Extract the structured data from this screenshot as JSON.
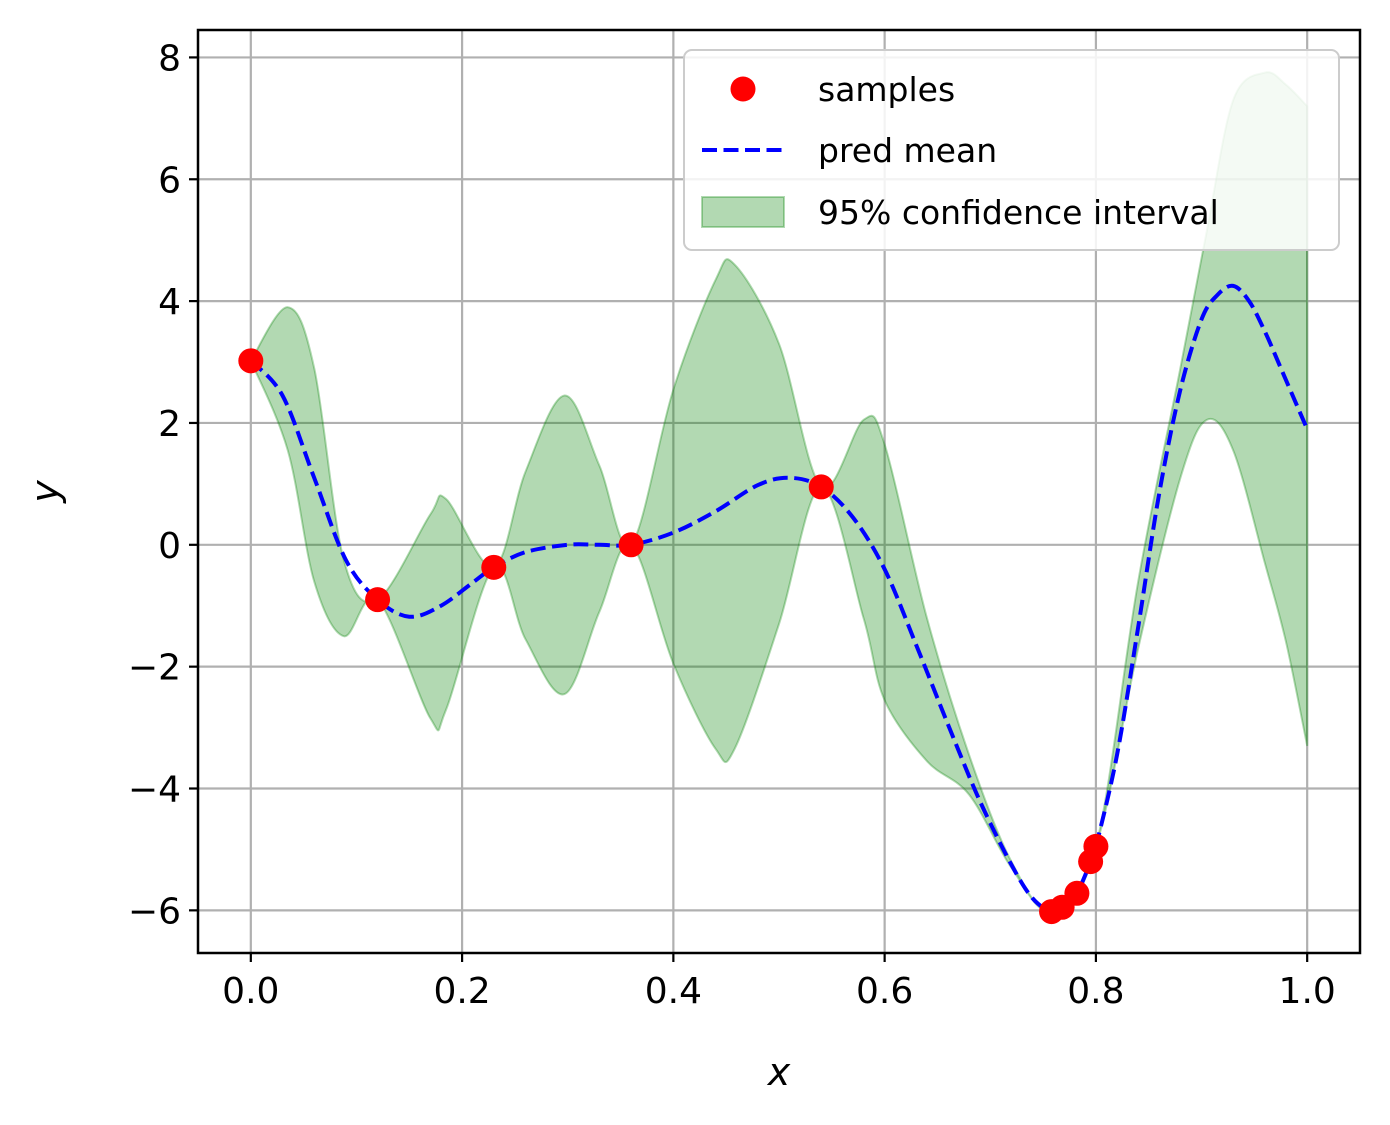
{
  "chart_data": {
    "type": "line",
    "xlabel": "x",
    "ylabel": "y",
    "xlim": [
      -0.05,
      1.05
    ],
    "ylim": [
      -6.7,
      8.45
    ],
    "grid": true,
    "legend_position": "top-right",
    "x_ticks": [
      {
        "value": 0.0,
        "label": "0.0"
      },
      {
        "value": 0.2,
        "label": "0.2"
      },
      {
        "value": 0.4,
        "label": "0.4"
      },
      {
        "value": 0.6,
        "label": "0.6"
      },
      {
        "value": 0.8,
        "label": "0.8"
      },
      {
        "value": 1.0,
        "label": "1.0"
      }
    ],
    "y_ticks": [
      {
        "value": 8,
        "label": "8"
      },
      {
        "value": 6,
        "label": "6"
      },
      {
        "value": 4,
        "label": "4"
      },
      {
        "value": 2,
        "label": "2"
      },
      {
        "value": 0,
        "label": "0"
      },
      {
        "value": -2,
        "label": "−2"
      },
      {
        "value": -4,
        "label": "−4"
      },
      {
        "value": -6,
        "label": "−6"
      }
    ],
    "series": [
      {
        "name": "samples",
        "kind": "scatter",
        "color": "#ff0000",
        "x": [
          0.0,
          0.12,
          0.23,
          0.36,
          0.54,
          0.758,
          0.768,
          0.782,
          0.795,
          0.8
        ],
        "y": [
          3.02,
          -0.9,
          -0.37,
          0.0,
          0.95,
          -6.02,
          -5.95,
          -5.72,
          -5.2,
          -4.95
        ]
      },
      {
        "name": "pred mean",
        "kind": "dashed-line",
        "color": "#0000ff",
        "x": [
          0.0,
          0.03,
          0.06,
          0.09,
          0.12,
          0.15,
          0.18,
          0.21,
          0.23,
          0.26,
          0.3,
          0.33,
          0.36,
          0.4,
          0.44,
          0.48,
          0.51,
          0.54,
          0.57,
          0.6,
          0.63,
          0.66,
          0.69,
          0.72,
          0.74,
          0.758,
          0.77,
          0.782,
          0.795,
          0.8,
          0.82,
          0.84,
          0.86,
          0.88,
          0.9,
          0.915,
          0.93,
          0.945,
          0.96,
          0.975,
          0.99,
          1.0
        ],
        "y": [
          3.02,
          2.45,
          1.1,
          -0.25,
          -0.9,
          -1.18,
          -1.0,
          -0.62,
          -0.37,
          -0.12,
          0.0,
          0.0,
          0.0,
          0.2,
          0.55,
          0.98,
          1.1,
          0.95,
          0.45,
          -0.4,
          -1.65,
          -2.95,
          -4.2,
          -5.25,
          -5.8,
          -6.02,
          -5.95,
          -5.72,
          -5.2,
          -4.95,
          -3.45,
          -1.35,
          0.85,
          2.55,
          3.7,
          4.1,
          4.25,
          4.0,
          3.5,
          2.9,
          2.3,
          1.9
        ]
      },
      {
        "name": "95% confidence interval",
        "kind": "band",
        "color": "#008000",
        "x": [
          0.0,
          0.035,
          0.06,
          0.088,
          0.12,
          0.17,
          0.185,
          0.23,
          0.26,
          0.297,
          0.33,
          0.36,
          0.4,
          0.44,
          0.458,
          0.5,
          0.54,
          0.58,
          0.6,
          0.64,
          0.68,
          0.72,
          0.758,
          0.8,
          0.84,
          0.88,
          0.905,
          0.93,
          0.96,
          0.98,
          1.0
        ],
        "upper": [
          3.02,
          3.9,
          2.9,
          -0.25,
          -0.9,
          0.5,
          0.75,
          -0.37,
          1.2,
          2.45,
          1.3,
          0.0,
          2.55,
          4.35,
          4.6,
          3.3,
          0.95,
          2.05,
          1.65,
          -1.2,
          -3.45,
          -5.2,
          -6.02,
          -4.95,
          -0.6,
          2.9,
          5.15,
          7.3,
          7.75,
          7.55,
          7.2
        ],
        "lower": [
          3.02,
          1.55,
          -0.6,
          -1.5,
          -0.9,
          -2.85,
          -2.7,
          -0.37,
          -1.55,
          -2.45,
          -1.1,
          0.0,
          -1.95,
          -3.35,
          -3.35,
          -1.3,
          0.95,
          -1.2,
          -2.55,
          -3.55,
          -4.1,
          -5.3,
          -6.02,
          -4.95,
          -1.7,
          1.1,
          2.05,
          1.55,
          -0.3,
          -1.6,
          -3.3
        ]
      }
    ]
  }
}
